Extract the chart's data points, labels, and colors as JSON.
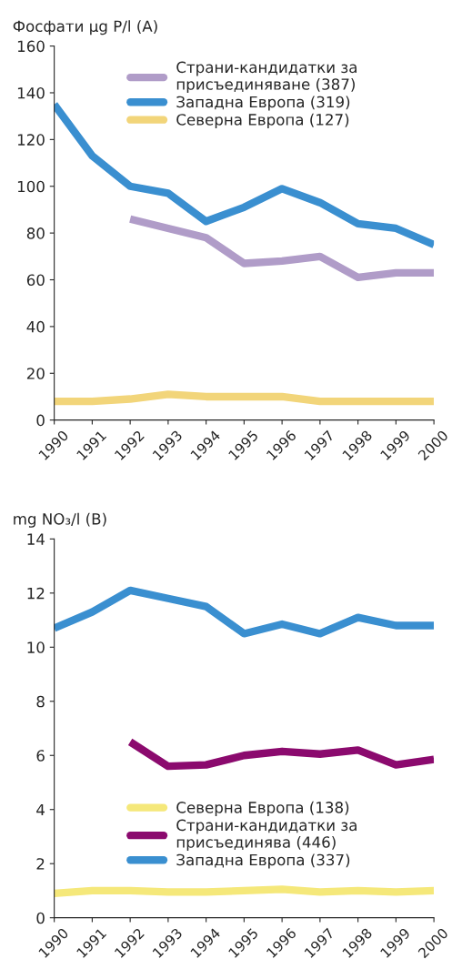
{
  "chart_data": [
    {
      "type": "line",
      "ylabel": "Фосфати µg P/l (A)",
      "x": [
        1990,
        1991,
        1992,
        1993,
        1994,
        1995,
        1996,
        1997,
        1998,
        1999,
        2000
      ],
      "xlim": [
        1990,
        2000
      ],
      "xticks": [
        1990,
        1991,
        1992,
        1993,
        1994,
        1995,
        1996,
        1997,
        1998,
        1999,
        2000
      ],
      "ylim": [
        0,
        160
      ],
      "yticks": [
        0,
        20,
        40,
        60,
        80,
        100,
        120,
        140,
        160
      ],
      "grid": false,
      "legend": "top",
      "marker": "none",
      "line_style": "solid",
      "series": [
        {
          "name": "Страни-кандидатки за\nприсъединяване (387)",
          "color": "#b09cc8",
          "values": [
            null,
            null,
            86,
            82,
            78,
            67,
            68,
            70,
            61,
            63,
            63
          ]
        },
        {
          "name": "Западна Европа (319)",
          "color": "#3a8fd0",
          "values": [
            135,
            113,
            100,
            97,
            85,
            91,
            99,
            93,
            84,
            82,
            75
          ]
        },
        {
          "name": "Северна Европа (127)",
          "color": "#f2d57a",
          "values": [
            8,
            8,
            9,
            11,
            10,
            10,
            10,
            8,
            8,
            8,
            8
          ]
        }
      ]
    },
    {
      "type": "line",
      "ylabel": "mg NO₃/l (B)",
      "x": [
        1990,
        1991,
        1992,
        1993,
        1994,
        1995,
        1996,
        1997,
        1998,
        1999,
        2000
      ],
      "xlim": [
        1990,
        2000
      ],
      "xticks": [
        1990,
        1991,
        1992,
        1993,
        1994,
        1995,
        1996,
        1997,
        1998,
        1999,
        2000
      ],
      "ylim": [
        0,
        14
      ],
      "yticks": [
        0,
        2,
        4,
        6,
        8,
        10,
        12,
        14
      ],
      "grid": false,
      "legend": "bottom",
      "marker": "none",
      "line_style": "solid",
      "series": [
        {
          "name": "Северна Европа (138)",
          "color": "#f5e87a",
          "values": [
            0.9,
            1.0,
            1.0,
            0.95,
            0.95,
            1.0,
            1.05,
            0.95,
            1.0,
            0.95,
            1.0
          ]
        },
        {
          "name": "Страни-кандидатки за\nприсъединява (446)",
          "color": "#8b0a6e",
          "values": [
            null,
            null,
            6.5,
            5.6,
            5.65,
            6.0,
            6.15,
            6.05,
            6.2,
            5.65,
            5.85
          ]
        },
        {
          "name": "Западна Европа (337)",
          "color": "#3a8fd0",
          "values": [
            10.7,
            11.3,
            12.1,
            11.8,
            11.5,
            10.5,
            10.85,
            10.5,
            11.1,
            10.8,
            10.8
          ]
        }
      ]
    }
  ]
}
